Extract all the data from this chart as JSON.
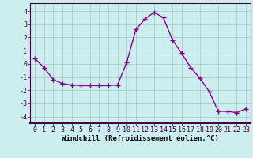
{
  "x": [
    0,
    1,
    2,
    3,
    4,
    5,
    6,
    7,
    8,
    9,
    10,
    11,
    12,
    13,
    14,
    15,
    16,
    17,
    18,
    19,
    20,
    21,
    22,
    23
  ],
  "y": [
    0.4,
    -0.3,
    -1.2,
    -1.5,
    -1.6,
    -1.65,
    -1.65,
    -1.65,
    -1.65,
    -1.6,
    0.1,
    2.6,
    3.4,
    3.9,
    3.5,
    1.8,
    0.8,
    -0.3,
    -1.1,
    -2.1,
    -3.6,
    -3.6,
    -3.7,
    -3.4
  ],
  "line_color": "#880088",
  "marker": "+",
  "markersize": 4,
  "linewidth": 1.0,
  "bg_color": "#cceeee",
  "grid_color": "#aacccc",
  "xlabel": "Windchill (Refroidissement éolien,°C)",
  "xlabel_fontsize": 6.5,
  "yticks": [
    -4,
    -3,
    -2,
    -1,
    0,
    1,
    2,
    3,
    4
  ],
  "xticks": [
    0,
    1,
    2,
    3,
    4,
    5,
    6,
    7,
    8,
    9,
    10,
    11,
    12,
    13,
    14,
    15,
    16,
    17,
    18,
    19,
    20,
    21,
    22,
    23
  ],
  "ylim": [
    -4.5,
    4.6
  ],
  "xlim": [
    -0.5,
    23.5
  ],
  "tick_fontsize": 6
}
